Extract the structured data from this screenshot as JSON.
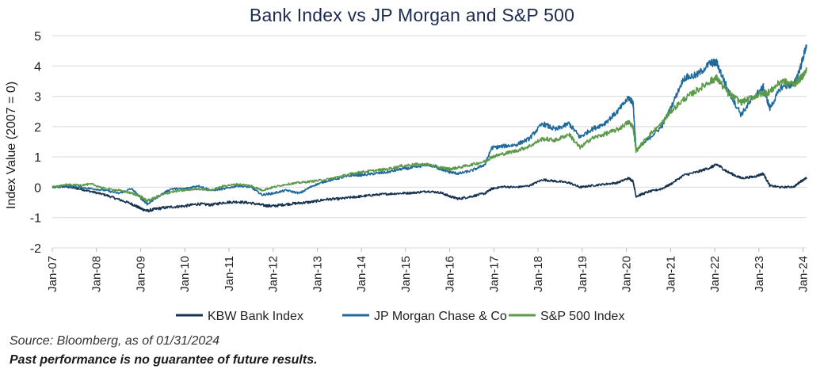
{
  "chart_data": {
    "type": "line",
    "title": "Bank Index vs JP Morgan and S&P 500",
    "xlabel": "",
    "ylabel": "Index Value (2007 = 0)",
    "ylim": [
      -2,
      5
    ],
    "yticks": [
      -2,
      -1,
      0,
      1,
      2,
      3,
      4,
      5
    ],
    "xlim": [
      2007.0,
      2024.08
    ],
    "xticks": [
      {
        "x": 2007,
        "label": "Jan-07"
      },
      {
        "x": 2008,
        "label": "Jan-08"
      },
      {
        "x": 2009,
        "label": "Jan-09"
      },
      {
        "x": 2010,
        "label": "Jan-10"
      },
      {
        "x": 2011,
        "label": "Jan-11"
      },
      {
        "x": 2012,
        "label": "Jan-12"
      },
      {
        "x": 2013,
        "label": "Jan-13"
      },
      {
        "x": 2014,
        "label": "Jan-14"
      },
      {
        "x": 2015,
        "label": "Jan-15"
      },
      {
        "x": 2016,
        "label": "Jan-16"
      },
      {
        "x": 2017,
        "label": "Jan-17"
      },
      {
        "x": 2018,
        "label": "Jan-18"
      },
      {
        "x": 2019,
        "label": "Jan-19"
      },
      {
        "x": 2020,
        "label": "Jan-20"
      },
      {
        "x": 2021,
        "label": "Jan-21"
      },
      {
        "x": 2022,
        "label": "Jan-22"
      },
      {
        "x": 2023,
        "label": "Jan-23"
      },
      {
        "x": 2024,
        "label": "Jan-24"
      }
    ],
    "grid": "horizontal",
    "legend_position": "bottom",
    "series": [
      {
        "name": "KBW Bank Index",
        "color": "#17324f",
        "points": [
          [
            2007.0,
            0.0
          ],
          [
            2007.3,
            0.02
          ],
          [
            2007.6,
            -0.05
          ],
          [
            2007.9,
            -0.15
          ],
          [
            2008.2,
            -0.25
          ],
          [
            2008.5,
            -0.4
          ],
          [
            2008.8,
            -0.55
          ],
          [
            2009.0,
            -0.7
          ],
          [
            2009.15,
            -0.78
          ],
          [
            2009.4,
            -0.7
          ],
          [
            2009.7,
            -0.65
          ],
          [
            2010.0,
            -0.62
          ],
          [
            2010.3,
            -0.55
          ],
          [
            2010.6,
            -0.58
          ],
          [
            2010.9,
            -0.5
          ],
          [
            2011.2,
            -0.48
          ],
          [
            2011.5,
            -0.52
          ],
          [
            2011.8,
            -0.6
          ],
          [
            2012.0,
            -0.62
          ],
          [
            2012.3,
            -0.56
          ],
          [
            2012.6,
            -0.52
          ],
          [
            2012.9,
            -0.48
          ],
          [
            2013.2,
            -0.4
          ],
          [
            2013.5,
            -0.38
          ],
          [
            2013.8,
            -0.33
          ],
          [
            2014.0,
            -0.3
          ],
          [
            2014.3,
            -0.25
          ],
          [
            2014.6,
            -0.22
          ],
          [
            2014.9,
            -0.2
          ],
          [
            2015.2,
            -0.18
          ],
          [
            2015.5,
            -0.13
          ],
          [
            2015.8,
            -0.18
          ],
          [
            2016.0,
            -0.3
          ],
          [
            2016.2,
            -0.38
          ],
          [
            2016.5,
            -0.3
          ],
          [
            2016.8,
            -0.2
          ],
          [
            2016.95,
            -0.05
          ],
          [
            2017.2,
            0.02
          ],
          [
            2017.5,
            0.0
          ],
          [
            2017.8,
            0.05
          ],
          [
            2018.1,
            0.25
          ],
          [
            2018.4,
            0.2
          ],
          [
            2018.7,
            0.15
          ],
          [
            2018.95,
            0.0
          ],
          [
            2019.2,
            0.05
          ],
          [
            2019.5,
            0.1
          ],
          [
            2019.8,
            0.15
          ],
          [
            2020.05,
            0.3
          ],
          [
            2020.15,
            0.2
          ],
          [
            2020.22,
            -0.3
          ],
          [
            2020.5,
            -0.15
          ],
          [
            2020.8,
            -0.05
          ],
          [
            2021.0,
            0.1
          ],
          [
            2021.3,
            0.4
          ],
          [
            2021.6,
            0.5
          ],
          [
            2021.9,
            0.65
          ],
          [
            2022.05,
            0.75
          ],
          [
            2022.3,
            0.5
          ],
          [
            2022.6,
            0.3
          ],
          [
            2022.9,
            0.35
          ],
          [
            2023.1,
            0.45
          ],
          [
            2023.25,
            0.05
          ],
          [
            2023.5,
            0.0
          ],
          [
            2023.8,
            0.02
          ],
          [
            2023.95,
            0.2
          ],
          [
            2024.08,
            0.3
          ]
        ]
      },
      {
        "name": "JP Morgan Chase & Co",
        "color": "#1f6a9a",
        "points": [
          [
            2007.0,
            0.0
          ],
          [
            2007.3,
            0.05
          ],
          [
            2007.6,
            0.0
          ],
          [
            2007.9,
            -0.05
          ],
          [
            2008.2,
            -0.1
          ],
          [
            2008.5,
            -0.2
          ],
          [
            2008.8,
            -0.05
          ],
          [
            2009.0,
            -0.35
          ],
          [
            2009.15,
            -0.55
          ],
          [
            2009.4,
            -0.3
          ],
          [
            2009.7,
            -0.05
          ],
          [
            2010.0,
            -0.05
          ],
          [
            2010.3,
            0.05
          ],
          [
            2010.6,
            -0.1
          ],
          [
            2010.9,
            -0.05
          ],
          [
            2011.2,
            0.05
          ],
          [
            2011.5,
            0.0
          ],
          [
            2011.75,
            -0.25
          ],
          [
            2012.0,
            -0.2
          ],
          [
            2012.3,
            -0.1
          ],
          [
            2012.6,
            -0.2
          ],
          [
            2012.9,
            0.05
          ],
          [
            2013.2,
            0.2
          ],
          [
            2013.5,
            0.3
          ],
          [
            2013.8,
            0.4
          ],
          [
            2014.0,
            0.4
          ],
          [
            2014.3,
            0.45
          ],
          [
            2014.6,
            0.5
          ],
          [
            2014.9,
            0.6
          ],
          [
            2015.2,
            0.65
          ],
          [
            2015.5,
            0.75
          ],
          [
            2015.8,
            0.6
          ],
          [
            2016.0,
            0.5
          ],
          [
            2016.2,
            0.45
          ],
          [
            2016.5,
            0.55
          ],
          [
            2016.8,
            0.75
          ],
          [
            2016.95,
            1.3
          ],
          [
            2017.2,
            1.35
          ],
          [
            2017.5,
            1.4
          ],
          [
            2017.8,
            1.6
          ],
          [
            2018.1,
            2.1
          ],
          [
            2018.4,
            1.9
          ],
          [
            2018.7,
            2.1
          ],
          [
            2018.95,
            1.65
          ],
          [
            2019.2,
            1.9
          ],
          [
            2019.5,
            2.1
          ],
          [
            2019.8,
            2.5
          ],
          [
            2020.05,
            2.95
          ],
          [
            2020.15,
            2.8
          ],
          [
            2020.22,
            1.2
          ],
          [
            2020.5,
            1.6
          ],
          [
            2020.8,
            2.0
          ],
          [
            2021.0,
            2.6
          ],
          [
            2021.3,
            3.6
          ],
          [
            2021.6,
            3.7
          ],
          [
            2021.9,
            4.1
          ],
          [
            2022.05,
            4.1
          ],
          [
            2022.3,
            3.2
          ],
          [
            2022.6,
            2.4
          ],
          [
            2022.9,
            3.0
          ],
          [
            2023.1,
            3.3
          ],
          [
            2023.25,
            2.6
          ],
          [
            2023.5,
            3.3
          ],
          [
            2023.8,
            3.4
          ],
          [
            2023.95,
            4.0
          ],
          [
            2024.08,
            4.7
          ]
        ]
      },
      {
        "name": "S&P 500 Index",
        "color": "#5c9a4a",
        "points": [
          [
            2007.0,
            0.0
          ],
          [
            2007.3,
            0.08
          ],
          [
            2007.6,
            0.07
          ],
          [
            2007.9,
            0.1
          ],
          [
            2008.2,
            -0.05
          ],
          [
            2008.5,
            -0.1
          ],
          [
            2008.8,
            -0.2
          ],
          [
            2009.0,
            -0.3
          ],
          [
            2009.15,
            -0.45
          ],
          [
            2009.4,
            -0.3
          ],
          [
            2009.7,
            -0.15
          ],
          [
            2010.0,
            -0.1
          ],
          [
            2010.3,
            -0.05
          ],
          [
            2010.6,
            -0.1
          ],
          [
            2010.9,
            0.05
          ],
          [
            2011.2,
            0.1
          ],
          [
            2011.5,
            0.05
          ],
          [
            2011.75,
            -0.1
          ],
          [
            2012.0,
            0.0
          ],
          [
            2012.3,
            0.1
          ],
          [
            2012.6,
            0.15
          ],
          [
            2012.9,
            0.2
          ],
          [
            2013.2,
            0.25
          ],
          [
            2013.5,
            0.35
          ],
          [
            2013.8,
            0.45
          ],
          [
            2014.0,
            0.5
          ],
          [
            2014.3,
            0.55
          ],
          [
            2014.6,
            0.6
          ],
          [
            2014.9,
            0.7
          ],
          [
            2015.2,
            0.75
          ],
          [
            2015.5,
            0.75
          ],
          [
            2015.8,
            0.65
          ],
          [
            2016.0,
            0.6
          ],
          [
            2016.2,
            0.65
          ],
          [
            2016.5,
            0.75
          ],
          [
            2016.8,
            0.85
          ],
          [
            2016.95,
            1.0
          ],
          [
            2017.2,
            1.1
          ],
          [
            2017.5,
            1.2
          ],
          [
            2017.8,
            1.35
          ],
          [
            2018.1,
            1.6
          ],
          [
            2018.4,
            1.55
          ],
          [
            2018.7,
            1.75
          ],
          [
            2018.95,
            1.3
          ],
          [
            2019.2,
            1.6
          ],
          [
            2019.5,
            1.75
          ],
          [
            2019.8,
            1.9
          ],
          [
            2020.05,
            2.15
          ],
          [
            2020.15,
            2.0
          ],
          [
            2020.22,
            1.2
          ],
          [
            2020.5,
            1.7
          ],
          [
            2020.8,
            2.1
          ],
          [
            2021.0,
            2.5
          ],
          [
            2021.3,
            2.9
          ],
          [
            2021.6,
            3.2
          ],
          [
            2021.9,
            3.5
          ],
          [
            2022.05,
            3.6
          ],
          [
            2022.3,
            3.1
          ],
          [
            2022.6,
            2.8
          ],
          [
            2022.9,
            3.0
          ],
          [
            2023.1,
            3.1
          ],
          [
            2023.25,
            3.15
          ],
          [
            2023.5,
            3.5
          ],
          [
            2023.8,
            3.4
          ],
          [
            2023.95,
            3.6
          ],
          [
            2024.08,
            3.85
          ]
        ]
      }
    ]
  },
  "footer": {
    "source": "Source: Bloomberg, as of 01/31/2024",
    "disclaimer": "Past performance is no guarantee of future results."
  }
}
